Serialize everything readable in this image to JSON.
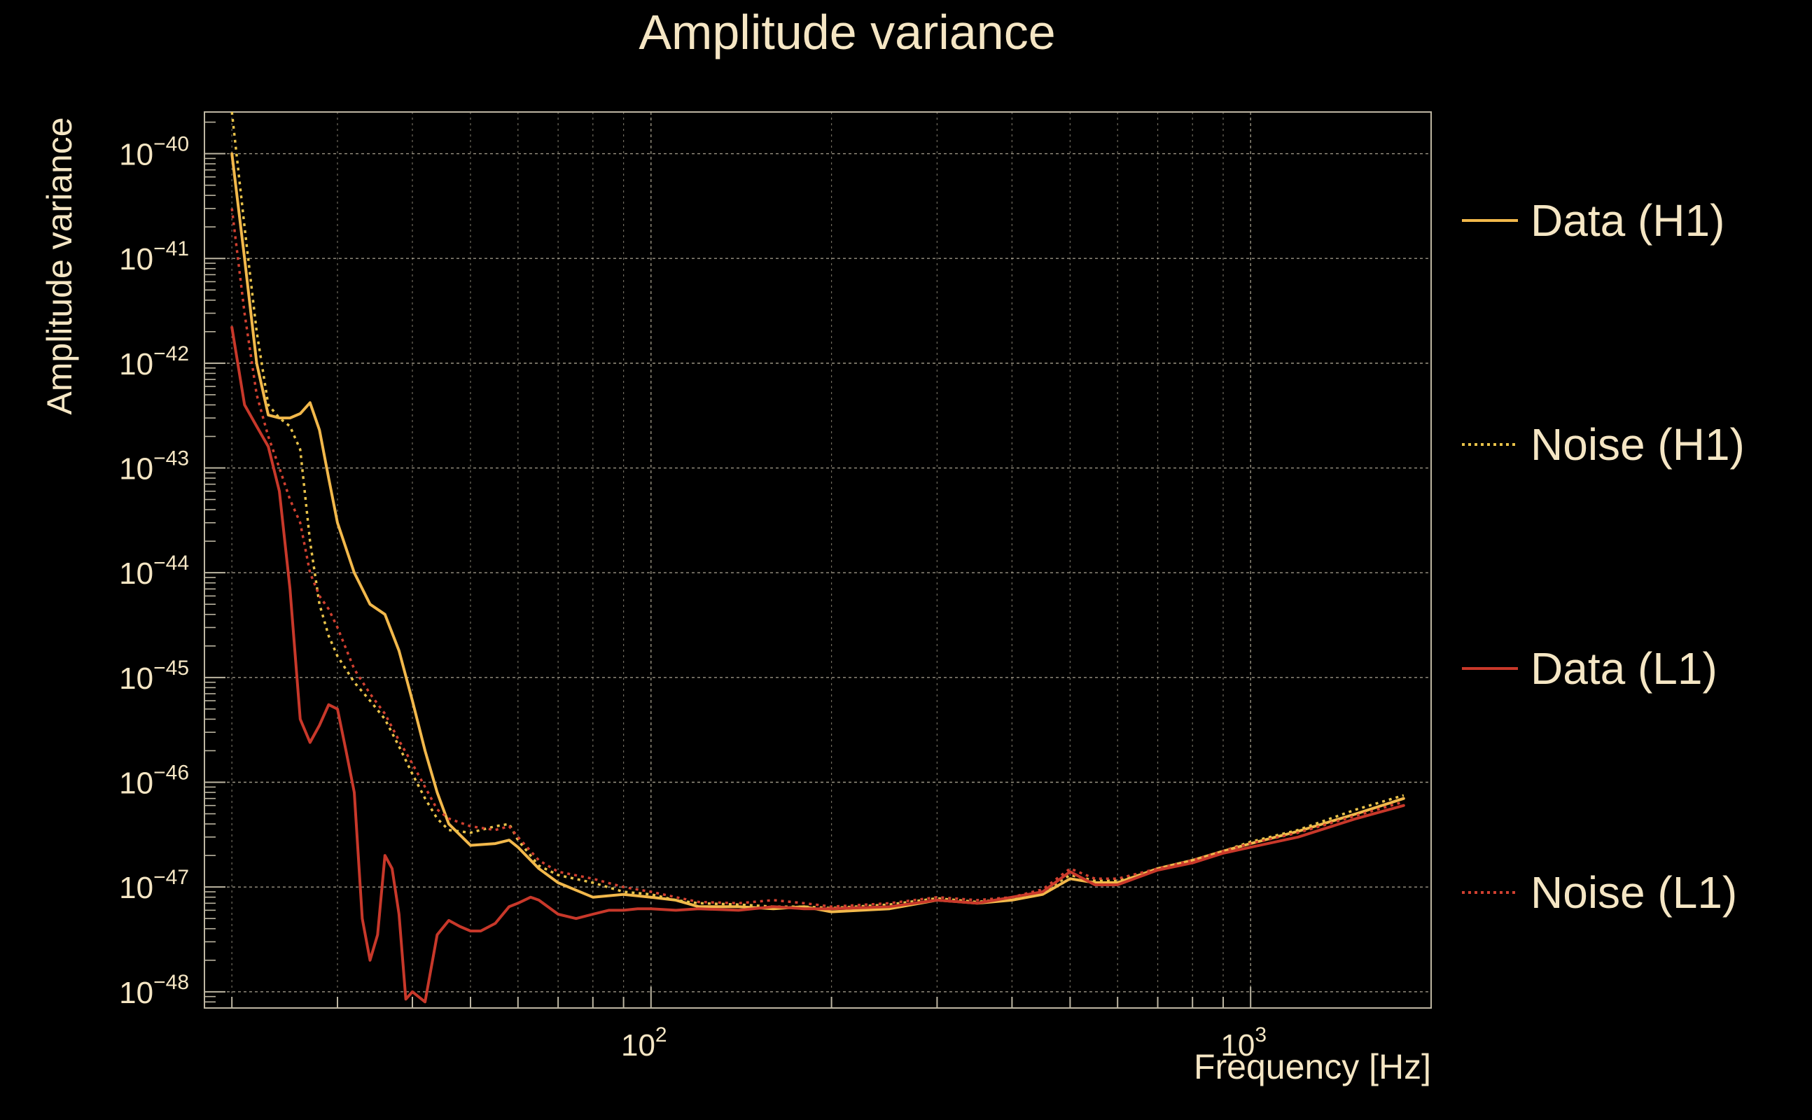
{
  "chart_data": {
    "type": "line",
    "title": "Amplitude variance",
    "xlabel": "Frequency [Hz]",
    "ylabel": "Amplitude variance",
    "x_scale": "log",
    "y_scale": "log",
    "xlim": [
      18,
      2000
    ],
    "ylim": [
      7e-49,
      2.5e-40
    ],
    "x_ticks": [
      {
        "base": "10",
        "exp": "2",
        "value": 100
      },
      {
        "base": "10",
        "exp": "3",
        "value": 1000
      }
    ],
    "y_ticks": [
      {
        "base": "10",
        "exp": "−40",
        "value": 1e-40
      },
      {
        "base": "10",
        "exp": "−41",
        "value": 1e-41
      },
      {
        "base": "10",
        "exp": "−42",
        "value": 1e-42
      },
      {
        "base": "10",
        "exp": "−43",
        "value": 1e-43
      },
      {
        "base": "10",
        "exp": "−44",
        "value": 1e-44
      },
      {
        "base": "10",
        "exp": "−45",
        "value": 1e-45
      },
      {
        "base": "10",
        "exp": "−46",
        "value": 1e-46
      },
      {
        "base": "10",
        "exp": "−47",
        "value": 1e-47
      },
      {
        "base": "10",
        "exp": "−48",
        "value": 1e-48
      }
    ],
    "grid": true,
    "legend_position": "right",
    "series": [
      {
        "name": "Data (H1)",
        "color": "#f2b84b",
        "style": "solid",
        "x": [
          20,
          21,
          22,
          23,
          24,
          25,
          26,
          27,
          28,
          29,
          30,
          32,
          34,
          36,
          38,
          40,
          42,
          44,
          46,
          50,
          55,
          58,
          60,
          65,
          70,
          80,
          90,
          100,
          110,
          120,
          140,
          160,
          180,
          200,
          250,
          300,
          350,
          400,
          450,
          500,
          550,
          600,
          700,
          800,
          900,
          1000,
          1200,
          1500,
          1800
        ],
        "y": [
          1e-40,
          1e-41,
          1e-42,
          3.2e-43,
          3e-43,
          3e-43,
          3.3e-43,
          4.2e-43,
          2.3e-43,
          8e-44,
          3e-44,
          1e-44,
          5e-45,
          4e-45,
          1.8e-45,
          6e-46,
          2e-46,
          8e-47,
          4e-47,
          2.5e-47,
          2.6e-47,
          2.8e-47,
          2.4e-47,
          1.5e-47,
          1.1e-47,
          8e-48,
          8.5e-48,
          8e-48,
          7.5e-48,
          6.5e-48,
          6.5e-48,
          6.2e-48,
          6.5e-48,
          5.8e-48,
          6.2e-48,
          7.5e-48,
          7e-48,
          7.5e-48,
          8.5e-48,
          1.2e-47,
          1.1e-47,
          1.1e-47,
          1.5e-47,
          1.8e-47,
          2.2e-47,
          2.6e-47,
          3.4e-47,
          5e-47,
          7e-47
        ]
      },
      {
        "name": "Noise (H1)",
        "color": "#e8c24a",
        "style": "dotted",
        "x": [
          20,
          21,
          22,
          23,
          24,
          25,
          26,
          27,
          28,
          29,
          30,
          32,
          34,
          36,
          38,
          40,
          42,
          44,
          46,
          50,
          55,
          58,
          60,
          65,
          70,
          80,
          90,
          100,
          110,
          120,
          140,
          160,
          180,
          200,
          250,
          300,
          350,
          400,
          450,
          500,
          550,
          600,
          700,
          800,
          900,
          1000,
          1200,
          1500,
          1800
        ],
        "y": [
          2.5e-40,
          2e-41,
          2e-42,
          4e-43,
          3e-43,
          2.5e-43,
          1.5e-43,
          2e-44,
          5e-45,
          2.5e-45,
          1.6e-45,
          9e-46,
          6e-46,
          4e-46,
          2.2e-46,
          1.2e-46,
          7e-47,
          4.5e-47,
          3.5e-47,
          3.3e-47,
          3.8e-47,
          4e-47,
          2.8e-47,
          1.6e-47,
          1.3e-47,
          1.1e-47,
          9e-48,
          8.5e-48,
          7.5e-48,
          7e-48,
          6.8e-48,
          6.5e-48,
          6.5e-48,
          6.3e-48,
          6.8e-48,
          7.8e-48,
          7.2e-48,
          7.8e-48,
          9e-48,
          1.3e-47,
          1.15e-47,
          1.15e-47,
          1.5e-47,
          1.8e-47,
          2.2e-47,
          2.7e-47,
          3.5e-47,
          5.5e-47,
          7.5e-47
        ]
      },
      {
        "name": "Data (L1)",
        "color": "#c8382a",
        "style": "solid",
        "x": [
          20,
          21,
          22,
          23,
          24,
          25,
          26,
          27,
          28,
          29,
          30,
          31,
          32,
          33,
          34,
          35,
          36,
          37,
          38,
          39,
          40,
          42,
          44,
          46,
          48,
          50,
          52,
          55,
          58,
          60,
          63,
          65,
          70,
          75,
          80,
          85,
          90,
          95,
          100,
          110,
          120,
          140,
          160,
          180,
          200,
          250,
          300,
          350,
          400,
          450,
          500,
          550,
          600,
          700,
          800,
          900,
          1000,
          1200,
          1500,
          1800
        ],
        "y": [
          2.2e-42,
          4e-43,
          2.5e-43,
          1.6e-43,
          6e-44,
          7e-45,
          4e-46,
          2.4e-46,
          3.5e-46,
          5.5e-46,
          5e-46,
          2e-46,
          8e-47,
          5e-48,
          2e-48,
          3.5e-48,
          2e-47,
          1.5e-47,
          5.5e-48,
          8.5e-49,
          1e-48,
          8e-49,
          3.5e-48,
          4.8e-48,
          4.2e-48,
          3.8e-48,
          3.8e-48,
          4.5e-48,
          6.5e-48,
          7e-48,
          8e-48,
          7.5e-48,
          5.5e-48,
          5e-48,
          5.5e-48,
          6e-48,
          6e-48,
          6.2e-48,
          6.2e-48,
          6e-48,
          6.2e-48,
          6e-48,
          6.5e-48,
          6.2e-48,
          6.2e-48,
          6.5e-48,
          7.5e-48,
          7e-48,
          8e-48,
          9e-48,
          1.4e-47,
          1.05e-47,
          1.05e-47,
          1.45e-47,
          1.7e-47,
          2.1e-47,
          2.4e-47,
          3e-47,
          4.5e-47,
          6e-47
        ]
      },
      {
        "name": "Noise (L1)",
        "color": "#d04030",
        "style": "dotted",
        "x": [
          20,
          21,
          22,
          23,
          24,
          25,
          26,
          27,
          28,
          29,
          30,
          32,
          34,
          36,
          38,
          40,
          42,
          44,
          46,
          50,
          55,
          58,
          60,
          65,
          70,
          80,
          90,
          100,
          110,
          120,
          140,
          160,
          180,
          200,
          250,
          300,
          350,
          400,
          450,
          500,
          550,
          600,
          700,
          800,
          900,
          1000,
          1200,
          1500,
          1800
        ],
        "y": [
          3e-41,
          3e-42,
          5e-43,
          2e-43,
          1e-43,
          5e-44,
          3e-44,
          1e-44,
          6e-45,
          4.5e-45,
          3e-45,
          1.2e-45,
          7e-46,
          4.5e-46,
          2.5e-46,
          1.5e-46,
          9e-47,
          5.5e-47,
          4.5e-47,
          3.8e-47,
          3.5e-47,
          3.8e-47,
          3e-47,
          1.8e-47,
          1.4e-47,
          1.2e-47,
          1e-47,
          9e-48,
          8e-48,
          7.2e-48,
          7e-48,
          7.5e-48,
          7e-48,
          6.5e-48,
          7e-48,
          8e-48,
          7.5e-48,
          8e-48,
          9.5e-48,
          1.5e-47,
          1.2e-47,
          1.2e-47,
          1.5e-47,
          1.8e-47,
          2.2e-47,
          2.6e-47,
          3.3e-47,
          4.8e-47,
          6.5e-47
        ]
      }
    ]
  }
}
